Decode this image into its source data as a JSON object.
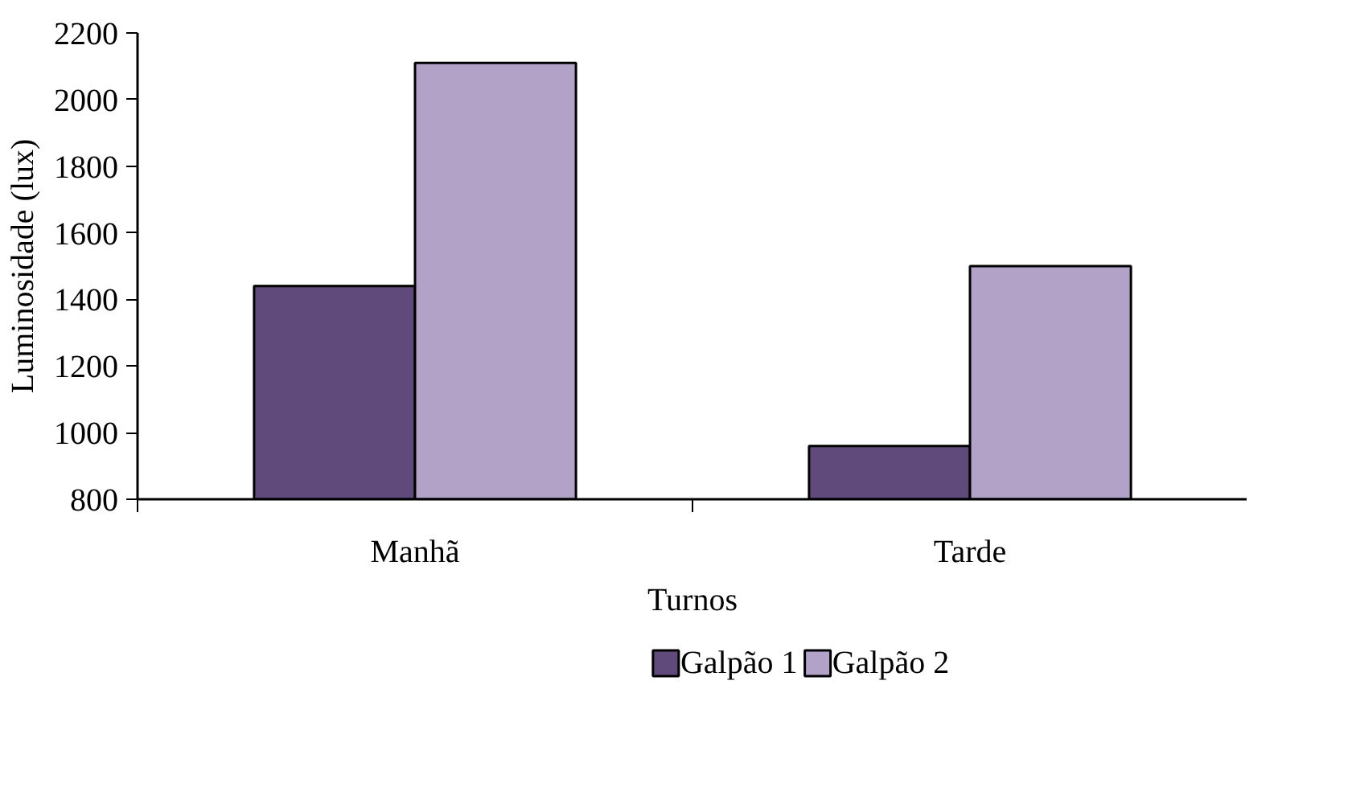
{
  "chart_data": {
    "type": "bar",
    "xlabel": "Turnos",
    "ylabel": "Luminosidade (lux)",
    "categories": [
      "Manhã",
      "Tarde"
    ],
    "series": [
      {
        "name": "Galpão 1",
        "color": "#604a7b",
        "values": [
          1440,
          960
        ]
      },
      {
        "name": "Galpão 2",
        "color": "#b3a2c7",
        "values": [
          2110,
          1500
        ]
      }
    ],
    "ylim": [
      800,
      2200
    ],
    "yticks": [
      800,
      1000,
      1200,
      1400,
      1600,
      1800,
      2000,
      2200
    ],
    "grid": false,
    "legend": "bottom"
  }
}
